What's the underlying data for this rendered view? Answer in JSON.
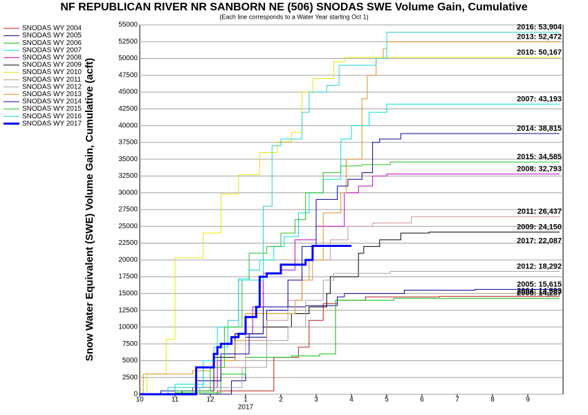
{
  "chart_data": {
    "type": "step-line",
    "title": "NF REPUBLICAN RIVER NR SANBORN NE (506) SNODAS SWE Volume Gain, Cumulative",
    "subtitle": "(Each line corresponds to a Water Year starting Oct 1)",
    "y_label": "Snow Water Equivalent (SWE) Volume Gain, Cumulative (acft)",
    "x_annotation": "2017",
    "xlim": [
      0,
      12
    ],
    "xticks": [
      {
        "value": 0,
        "label": "10"
      },
      {
        "value": 1,
        "label": "11"
      },
      {
        "value": 2,
        "label": "12"
      },
      {
        "value": 3,
        "label": "1"
      },
      {
        "value": 4,
        "label": "2"
      },
      {
        "value": 5,
        "label": "3"
      },
      {
        "value": 6,
        "label": "4"
      },
      {
        "value": 7,
        "label": "5"
      },
      {
        "value": 8,
        "label": "6"
      },
      {
        "value": 9,
        "label": "7"
      },
      {
        "value": 10,
        "label": "8"
      },
      {
        "value": 11,
        "label": "9"
      }
    ],
    "ylim": [
      0,
      55000
    ],
    "yticks": [
      0,
      2500,
      5000,
      7500,
      10000,
      12500,
      15000,
      17500,
      20000,
      22500,
      25000,
      27500,
      30000,
      32500,
      35000,
      37500,
      40000,
      42500,
      45000,
      47500,
      50000,
      52500,
      55000
    ],
    "grid": true,
    "legend": "left",
    "series": [
      {
        "name": "SNODAS WY 2004",
        "color": "#c01818",
        "x": [
          0,
          2.2,
          3.8,
          4.5,
          4.8,
          5.2,
          5.6,
          6.4,
          8.5,
          11.9
        ],
        "values": [
          0,
          500,
          5500,
          7000,
          11000,
          13500,
          14000,
          14500,
          14593,
          14593
        ],
        "end_label": "2004: 14,593"
      },
      {
        "name": "SNODAS WY 2005",
        "color": "#00008b",
        "x": [
          0,
          2.6,
          3.0,
          3.6,
          4.2,
          4.7,
          5.6,
          5.8,
          7.5,
          9.5,
          11.9
        ],
        "values": [
          0,
          2000,
          8500,
          12500,
          13000,
          13200,
          14500,
          15000,
          15500,
          15615,
          15615
        ],
        "end_label": "2005: 15,615"
      },
      {
        "name": "SNODAS WY 2006",
        "color": "#00c000",
        "x": [
          0,
          1.0,
          2.3,
          3.0,
          4.3,
          5.1,
          5.55,
          7.2,
          11.9
        ],
        "values": [
          0,
          200,
          3000,
          5500,
          5700,
          6000,
          14000,
          14287,
          14287
        ],
        "end_label": "2006: 14,287"
      },
      {
        "name": "SNODAS WY 2007",
        "color": "#00e0e0",
        "x": [
          0,
          1.0,
          1.8,
          2.2,
          2.8,
          3.1,
          3.4,
          3.8,
          4.1,
          4.5,
          4.8,
          5.2,
          5.7,
          6.0,
          6.5,
          7.0,
          11.9
        ],
        "values": [
          0,
          1500,
          5000,
          10000,
          17200,
          18500,
          20000,
          22000,
          23500,
          27000,
          30000,
          32000,
          38000,
          40000,
          42000,
          43193,
          43193
        ],
        "end_label": "2007: 43,193"
      },
      {
        "name": "SNODAS WY 2008",
        "color": "#c000c0",
        "x": [
          0,
          1.5,
          2.2,
          2.7,
          3.2,
          3.5,
          4.0,
          4.4,
          5.0,
          5.8,
          6.2,
          6.6,
          7.0,
          11.9
        ],
        "values": [
          0,
          1000,
          5000,
          9000,
          13000,
          18000,
          18500,
          23000,
          25000,
          30000,
          31000,
          32500,
          32793,
          32793
        ],
        "end_label": "2008: 32,793"
      },
      {
        "name": "SNODAS WY 2009",
        "color": "#000000",
        "x": [
          0,
          1.2,
          2.1,
          2.7,
          3.5,
          4.3,
          4.8,
          5.3,
          5.4,
          6.2,
          6.35,
          6.8,
          7.4,
          8.2,
          11.9
        ],
        "values": [
          0,
          500,
          5500,
          9000,
          10000,
          12000,
          13000,
          15000,
          17500,
          21000,
          22000,
          23000,
          24000,
          24150,
          24150
        ],
        "end_label": "2009: 24,150"
      },
      {
        "name": "SNODAS WY 2010",
        "color": "#e8e800",
        "x": [
          0,
          0.2,
          0.75,
          1.0,
          1.8,
          2.3,
          2.8,
          3.4,
          3.9,
          4.3,
          4.6,
          4.9,
          5.5,
          5.8,
          11.9
        ],
        "values": [
          0,
          3000,
          8200,
          20300,
          24000,
          29800,
          32700,
          36000,
          37600,
          39000,
          45000,
          47000,
          49500,
          50167,
          50167
        ],
        "end_label": "2010: 50,167"
      },
      {
        "name": "SNODAS WY 2011",
        "color": "#d09090",
        "x": [
          0,
          1.5,
          2.0,
          3.0,
          3.6,
          4.2,
          4.6,
          4.9,
          5.4,
          5.9,
          6.6,
          7.7,
          11.9
        ],
        "values": [
          0,
          500,
          4000,
          8000,
          11000,
          14000,
          17000,
          20000,
          23000,
          25000,
          25500,
          26437,
          26437
        ],
        "end_label": "2011: 26,437"
      },
      {
        "name": "SNODAS WY 2012",
        "color": "#a0a0a0",
        "x": [
          0,
          1.7,
          2.9,
          3.6,
          4.2,
          4.7,
          5.2,
          5.5,
          7.1,
          11.9
        ],
        "values": [
          0,
          1000,
          4000,
          8000,
          10000,
          14000,
          17000,
          18000,
          18292,
          18292
        ],
        "end_label": "2012: 18,292"
      },
      {
        "name": "SNODAS WY 2013",
        "color": "#e09020",
        "x": [
          0,
          0.1,
          1.5,
          2.0,
          2.3,
          2.7,
          3.0,
          4.4,
          4.6,
          4.8,
          5.2,
          5.7,
          5.85,
          6.3,
          6.45,
          6.7,
          6.9,
          7.0,
          11.9
        ],
        "values": [
          0,
          3000,
          3500,
          4000,
          5000,
          8000,
          12000,
          14000,
          17000,
          20000,
          27000,
          30000,
          35000,
          44000,
          47500,
          50000,
          51500,
          52472,
          52472
        ],
        "end_label": "2013: 52,472"
      },
      {
        "name": "SNODAS WY 2014",
        "color": "#0000a0",
        "x": [
          0,
          0.6,
          1.6,
          2.3,
          3.1,
          3.5,
          4.2,
          4.6,
          5.0,
          5.6,
          5.9,
          6.3,
          6.6,
          6.8,
          7.4,
          11.9
        ],
        "values": [
          0,
          500,
          2000,
          6000,
          9000,
          13000,
          17000,
          22000,
          29000,
          31000,
          32000,
          33000,
          37500,
          38000,
          38815,
          38815
        ],
        "end_label": "2014: 38,815"
      },
      {
        "name": "SNODAS WY 2015",
        "color": "#20c020",
        "x": [
          0,
          1.0,
          2.0,
          2.4,
          2.9,
          3.1,
          3.6,
          4.0,
          4.4,
          4.7,
          5.2,
          5.7,
          6.3,
          7.1,
          11.9
        ],
        "values": [
          0,
          500,
          4000,
          10000,
          17000,
          21000,
          22000,
          24000,
          26000,
          30000,
          33000,
          34000,
          34200,
          34585,
          34585
        ],
        "end_label": "2015: 34,585"
      },
      {
        "name": "SNODAS WY 2016",
        "color": "#20d0d0",
        "x": [
          0,
          0.8,
          1.8,
          2.1,
          2.5,
          2.8,
          3.5,
          3.75,
          4.0,
          4.6,
          4.8,
          5.3,
          5.65,
          6.7,
          7.0,
          11.9
        ],
        "values": [
          0,
          1000,
          4000,
          7000,
          11000,
          17000,
          28000,
          37000,
          38000,
          42000,
          45000,
          46000,
          49000,
          50000,
          53904,
          53904
        ],
        "end_label": "2016: 53,904"
      },
      {
        "name": "SNODAS WY 2017",
        "color": "#0000ff",
        "width": 3,
        "x": [
          0,
          1.6,
          2.1,
          2.2,
          2.3,
          2.6,
          2.8,
          3.0,
          3.3,
          3.4,
          3.6,
          4.0,
          4.7,
          4.9,
          6.0
        ],
        "values": [
          0,
          4000,
          6000,
          7000,
          7500,
          8500,
          9000,
          11500,
          13000,
          17500,
          18000,
          19300,
          20000,
          22087,
          22087
        ],
        "end_label": "2017: 22,087"
      }
    ]
  }
}
